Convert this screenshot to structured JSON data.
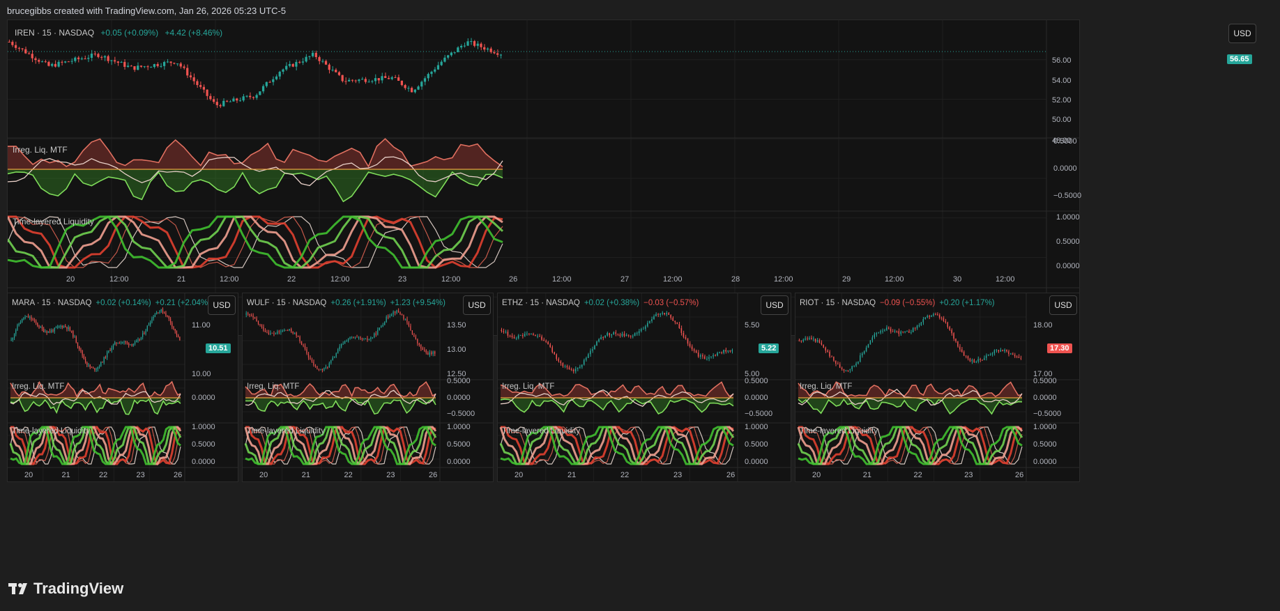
{
  "header": {
    "text": "brucegibbs created with TradingView.com, Jan 26, 2026 05:23 UTC-5"
  },
  "brand": {
    "name": "TradingView"
  },
  "colors": {
    "up": "#26a69a",
    "down": "#ef5350",
    "bg": "#131313"
  },
  "main": {
    "symbol": "IREN · 15 · NASDAQ",
    "change1": "+0.05 (+0.09%)",
    "change2": "+4.42 (+8.46%)",
    "currency": "USD",
    "price_tag": "56.65",
    "price_axis": [
      "56.00",
      "54.00",
      "52.00",
      "50.00",
      "48.00"
    ],
    "ind1_title": "Irreg. Liq. MTF",
    "ind1_axis": [
      "0.5000",
      "0.0000",
      "−0.5000"
    ],
    "ind2_title": "Time-layered Liquidity",
    "ind2_axis": [
      "1.0000",
      "0.5000",
      "0.0000"
    ],
    "time_axis": [
      "20",
      "12:00",
      "21",
      "12:00",
      "22",
      "12:00",
      "23",
      "12:00",
      "26",
      "12:00",
      "27",
      "12:00",
      "28",
      "12:00",
      "29",
      "12:00",
      "30",
      "12:00"
    ]
  },
  "mini": [
    {
      "symbol": "MARA · 15 · NASDAQ",
      "change1": "+0.02 (+0.14%)",
      "change2": "+0.21 (+2.04%)",
      "c1dir": "up",
      "c2dir": "up",
      "currency": "USD",
      "price_tag": "10.51",
      "tag_dir": "up",
      "price_axis": [
        "11.00",
        "10.00"
      ],
      "ind1_title": "Irreg. Liq. MTF",
      "ind1_axis": [
        "0.0000"
      ],
      "ind2_title": "Time-layered Liquidity",
      "ind2_axis": [
        "1.0000",
        "0.5000",
        "0.0000"
      ],
      "time_axis": [
        "20",
        "21",
        "22",
        "23",
        "26"
      ]
    },
    {
      "symbol": "WULF · 15 · NASDAQ",
      "change1": "+0.26 (+1.91%)",
      "change2": "+1.23 (+9.54%)",
      "c1dir": "up",
      "c2dir": "up",
      "currency": "USD",
      "price_tag": "",
      "tag_dir": "up",
      "price_axis": [
        "13.50",
        "13.00",
        "12.50"
      ],
      "ind1_title": "Irreg. Liq. MTF",
      "ind1_axis": [
        "0.5000",
        "0.0000",
        "−0.5000"
      ],
      "ind2_title": "Time-layered Liquidity",
      "ind2_axis": [
        "1.0000",
        "0.5000",
        "0.0000"
      ],
      "time_axis": [
        "20",
        "21",
        "22",
        "23",
        "26"
      ]
    },
    {
      "symbol": "ETHZ · 15 · NASDAQ",
      "change1": "+0.02 (+0.38%)",
      "change2": "−0.03 (−0.57%)",
      "c1dir": "up",
      "c2dir": "dn",
      "currency": "USD",
      "price_tag": "5.22",
      "tag_dir": "up",
      "price_axis": [
        "5.50",
        "5.00"
      ],
      "ind1_title": "Irreg. Liq. MTF",
      "ind1_axis": [
        "0.5000",
        "0.0000",
        "−0.5000"
      ],
      "ind2_title": "Time-layered Liquidity",
      "ind2_axis": [
        "1.0000",
        "0.5000",
        "0.0000"
      ],
      "time_axis": [
        "20",
        "21",
        "22",
        "23",
        "26"
      ]
    },
    {
      "symbol": "RIOT · 15 · NASDAQ",
      "change1": "−0.09 (−0.55%)",
      "change2": "+0.20 (+1.17%)",
      "c1dir": "dn",
      "c2dir": "up",
      "currency": "USD",
      "price_tag": "17.30",
      "tag_dir": "dn",
      "price_axis": [
        "18.00",
        "17.00"
      ],
      "ind1_title": "Irreg. Liq. MTF",
      "ind1_axis": [
        "0.5000",
        "0.0000",
        "−0.5000"
      ],
      "ind2_title": "Time-layered Liquidity",
      "ind2_axis": [
        "1.0000",
        "0.5000",
        "0.0000"
      ],
      "time_axis": [
        "20",
        "21",
        "22",
        "23",
        "26"
      ]
    }
  ]
}
